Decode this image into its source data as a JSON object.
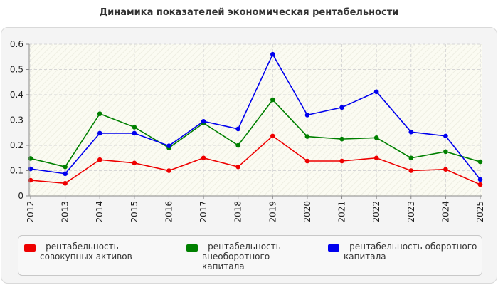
{
  "chart_data": {
    "type": "line",
    "title": "Динамика показателей экономическая рентабельности",
    "xlabel": "",
    "ylabel": "",
    "categories": [
      "2012",
      "2013",
      "2014",
      "2015",
      "2016",
      "2017",
      "2018",
      "2019",
      "2020",
      "2021",
      "2022",
      "2023",
      "2024",
      "2025"
    ],
    "ylim": [
      0,
      0.6
    ],
    "yticks": [
      "0",
      "0.1",
      "0.2",
      "0.3",
      "0.4",
      "0.5",
      "0.6"
    ],
    "grid": true,
    "legend_position": "bottom",
    "series": [
      {
        "name": "рентабельность совокупных активов",
        "color": "#ee0000",
        "values": [
          0.062,
          0.05,
          0.143,
          0.13,
          0.1,
          0.15,
          0.115,
          0.237,
          0.138,
          0.138,
          0.15,
          0.1,
          0.105,
          0.045
        ]
      },
      {
        "name": "рентабельность внеоборотного капитала",
        "color": "#008000",
        "values": [
          0.148,
          0.115,
          0.325,
          0.272,
          0.19,
          0.288,
          0.2,
          0.38,
          0.235,
          0.225,
          0.23,
          0.15,
          0.175,
          0.135
        ]
      },
      {
        "name": "рентабельность оборотного капитала",
        "color": "#0000ee",
        "values": [
          0.107,
          0.088,
          0.248,
          0.248,
          0.198,
          0.295,
          0.265,
          0.56,
          0.32,
          0.35,
          0.412,
          0.253,
          0.237,
          0.065
        ]
      }
    ]
  }
}
